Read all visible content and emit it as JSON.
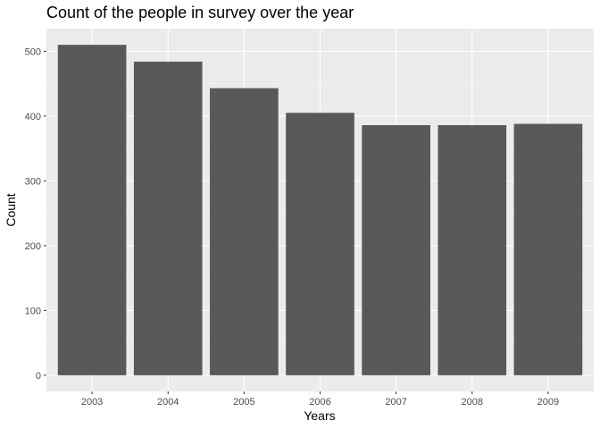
{
  "chart_data": {
    "type": "bar",
    "title": "Count of the people in survey over the year",
    "xlabel": "Years",
    "ylabel": "Count",
    "categories": [
      "2003",
      "2004",
      "2005",
      "2006",
      "2007",
      "2008",
      "2009"
    ],
    "values": [
      510,
      484,
      443,
      405,
      386,
      386,
      388
    ],
    "ylim": [
      -25,
      535
    ],
    "yticks": [
      0,
      100,
      200,
      300,
      400,
      500
    ],
    "grid": true,
    "legend": "none",
    "colors": {
      "bar": "#595959",
      "panel_background": "#ebebeb",
      "grid_major": "#ffffff",
      "grid_minor": "#f5f5f5",
      "tick_text": "#4d4d4d",
      "axis_tick": "#333333"
    }
  }
}
